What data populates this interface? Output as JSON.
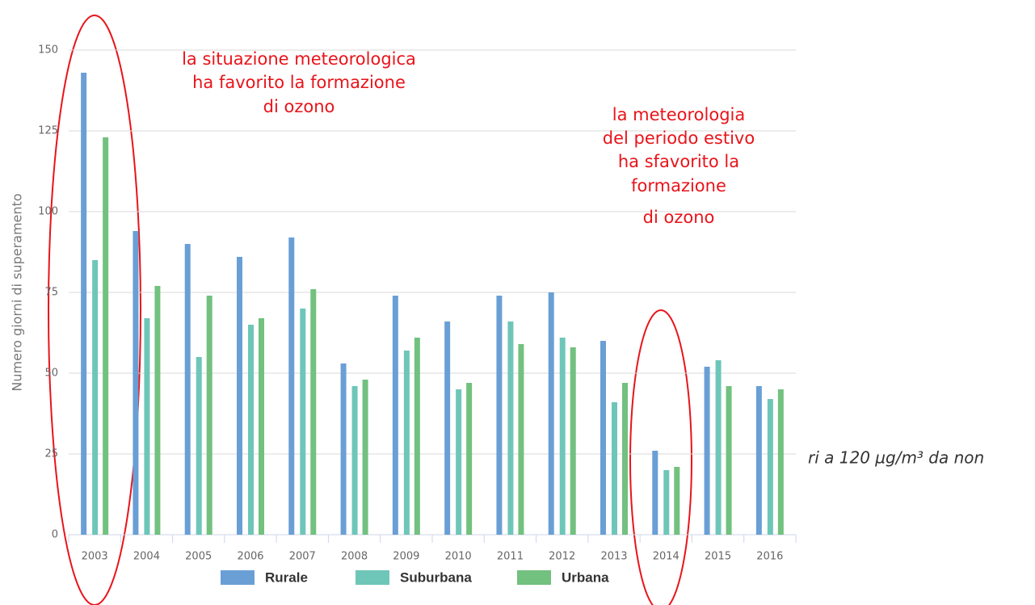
{
  "chart_data": {
    "type": "bar",
    "y_label": "Numero giorni di superamento",
    "categories": [
      "2003",
      "2004",
      "2005",
      "2006",
      "2007",
      "2008",
      "2009",
      "2010",
      "2011",
      "2012",
      "2013",
      "2014",
      "2015",
      "2016"
    ],
    "series": [
      {
        "name": "Rurale",
        "color": "#6a9fd6",
        "values": [
          143,
          94,
          90,
          86,
          92,
          53,
          74,
          66,
          74,
          75,
          60,
          26,
          52,
          46
        ]
      },
      {
        "name": "Suburbana",
        "color": "#6ec6b9",
        "values": [
          85,
          67,
          55,
          65,
          70,
          46,
          57,
          45,
          66,
          61,
          41,
          20,
          54,
          42
        ]
      },
      {
        "name": "Urbana",
        "color": "#72c17f",
        "values": [
          123,
          77,
          74,
          67,
          76,
          48,
          61,
          47,
          59,
          58,
          47,
          21,
          46,
          45
        ]
      }
    ],
    "ylim": [
      0,
      150
    ],
    "yticks": [
      0,
      25,
      50,
      75,
      100,
      125,
      150
    ],
    "grid": true,
    "annotations": [
      {
        "lines": [
          "la situazione meteorologica",
          "ha favorito la formazione",
          "di ozono"
        ]
      },
      {
        "lines": [
          "la meteorologia",
          "del periodo estivo",
          "ha sfavorito la",
          "formazione",
          "di ozono"
        ]
      }
    ],
    "side_text": "ri a 120 µg/m³ da non"
  }
}
